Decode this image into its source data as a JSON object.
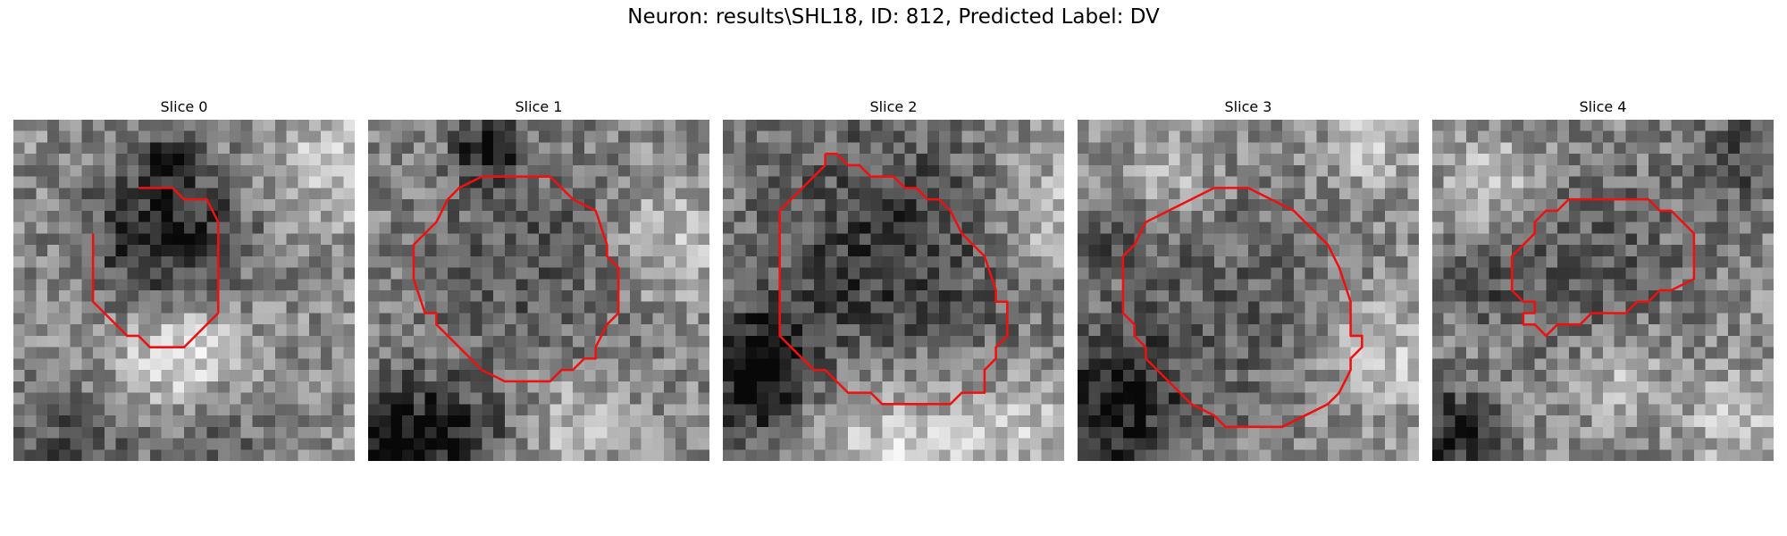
{
  "figure": {
    "title": "Neuron: results\\SHL18, ID: 812, Predicted Label: DV"
  },
  "contour_color": "#ee1111",
  "panels": [
    {
      "title": "Slice 0",
      "image": {
        "grid": 30,
        "dark_blobs": [
          [
            13,
            10,
            5,
            1.0
          ],
          [
            13,
            3,
            1.5,
            0.8
          ],
          [
            5,
            28,
            4,
            0.6
          ],
          [
            17,
            27,
            3,
            0.5
          ]
        ],
        "light_blobs": [
          [
            14,
            20,
            4,
            0.9
          ],
          [
            28,
            3,
            4,
            0.6
          ]
        ],
        "seed": 11
      },
      "contour": [
        [
          11,
          6
        ],
        [
          14,
          6
        ],
        [
          15,
          7
        ],
        [
          17,
          7
        ],
        [
          18,
          9
        ],
        [
          18,
          10
        ],
        [
          18,
          11
        ],
        [
          18,
          17
        ],
        [
          15,
          20
        ],
        [
          12,
          20
        ],
        [
          11,
          19
        ],
        [
          10,
          19
        ],
        [
          7,
          16
        ],
        [
          7,
          10
        ]
      ]
    },
    {
      "title": "Slice 1",
      "image": {
        "grid": 30,
        "dark_blobs": [
          [
            14,
            12,
            8,
            0.45
          ],
          [
            10,
            2,
            2,
            0.9
          ],
          [
            2,
            28,
            4,
            1.0
          ],
          [
            8,
            27,
            3,
            0.5
          ]
        ],
        "light_blobs": [
          [
            26,
            10,
            4,
            0.6
          ],
          [
            18,
            26,
            3,
            0.6
          ]
        ],
        "seed": 23
      },
      "contour": [
        [
          10,
          5
        ],
        [
          16,
          5
        ],
        [
          18,
          7
        ],
        [
          20,
          8
        ],
        [
          21,
          11
        ],
        [
          21,
          12
        ],
        [
          22,
          13
        ],
        [
          22,
          17
        ],
        [
          21,
          18
        ],
        [
          20,
          20
        ],
        [
          20,
          21
        ],
        [
          19,
          21
        ],
        [
          18,
          22
        ],
        [
          17,
          22
        ],
        [
          16,
          23
        ],
        [
          12,
          23
        ],
        [
          10,
          22
        ],
        [
          9,
          21
        ],
        [
          8,
          20
        ],
        [
          6,
          18
        ],
        [
          6,
          17
        ],
        [
          5,
          17
        ],
        [
          4,
          14
        ],
        [
          4,
          11
        ],
        [
          5,
          10
        ],
        [
          6,
          9
        ],
        [
          7,
          7
        ],
        [
          8,
          6
        ],
        [
          10,
          5
        ]
      ]
    },
    {
      "title": "Slice 2",
      "image": {
        "grid": 30,
        "dark_blobs": [
          [
            14,
            12,
            9,
            0.75
          ],
          [
            3,
            20,
            3,
            0.8
          ],
          [
            2,
            24,
            3,
            0.7
          ]
        ],
        "light_blobs": [
          [
            15,
            29,
            6,
            0.8
          ],
          [
            28,
            8,
            4,
            0.6
          ],
          [
            26,
            26,
            3,
            0.5
          ]
        ],
        "seed": 37
      },
      "contour": [
        [
          9,
          3
        ],
        [
          10,
          3
        ],
        [
          11,
          4
        ],
        [
          12,
          4
        ],
        [
          13,
          5
        ],
        [
          15,
          5
        ],
        [
          16,
          6
        ],
        [
          17,
          6
        ],
        [
          18,
          7
        ],
        [
          19,
          7
        ],
        [
          20,
          8
        ],
        [
          21,
          10
        ],
        [
          22,
          11
        ],
        [
          23,
          12
        ],
        [
          24,
          15
        ],
        [
          24,
          16
        ],
        [
          25,
          16
        ],
        [
          25,
          17
        ],
        [
          25,
          18
        ],
        [
          25,
          19
        ],
        [
          24,
          20
        ],
        [
          24,
          21
        ],
        [
          23,
          22
        ],
        [
          23,
          24
        ],
        [
          21,
          24
        ],
        [
          20,
          25
        ],
        [
          19,
          25
        ],
        [
          18,
          25
        ],
        [
          17,
          25
        ],
        [
          14,
          25
        ],
        [
          13,
          24
        ],
        [
          11,
          24
        ],
        [
          10,
          23
        ],
        [
          9,
          22
        ],
        [
          8,
          22
        ],
        [
          7,
          21
        ],
        [
          6,
          20
        ],
        [
          5,
          19
        ],
        [
          5,
          17
        ],
        [
          5,
          16
        ],
        [
          5,
          13
        ],
        [
          5,
          10
        ],
        [
          5,
          8
        ],
        [
          6,
          7
        ],
        [
          7,
          6
        ],
        [
          8,
          5
        ],
        [
          9,
          4
        ],
        [
          9,
          3
        ]
      ]
    },
    {
      "title": "Slice 3",
      "image": {
        "grid": 30,
        "dark_blobs": [
          [
            14,
            15,
            8,
            0.4
          ],
          [
            2,
            25,
            5,
            1.0
          ],
          [
            3,
            10,
            2,
            0.5
          ]
        ],
        "light_blobs": [
          [
            26,
            20,
            4,
            0.6
          ],
          [
            8,
            4,
            3,
            0.5
          ],
          [
            25,
            2,
            3,
            0.5
          ]
        ],
        "seed": 51
      },
      "contour": [
        [
          12,
          6
        ],
        [
          15,
          6
        ],
        [
          17,
          7
        ],
        [
          19,
          8
        ],
        [
          21,
          10
        ],
        [
          22,
          11
        ],
        [
          23,
          13
        ],
        [
          24,
          16
        ],
        [
          24,
          19
        ],
        [
          25,
          19
        ],
        [
          25,
          20
        ],
        [
          24,
          21
        ],
        [
          24,
          22
        ],
        [
          23,
          24
        ],
        [
          22,
          25
        ],
        [
          20,
          26
        ],
        [
          18,
          27
        ],
        [
          13,
          27
        ],
        [
          12,
          26
        ],
        [
          10,
          25
        ],
        [
          8,
          23
        ],
        [
          6,
          21
        ],
        [
          6,
          20
        ],
        [
          5,
          19
        ],
        [
          5,
          18
        ],
        [
          5,
          18
        ],
        [
          4,
          17
        ],
        [
          4,
          12
        ],
        [
          5,
          11
        ],
        [
          6,
          9
        ],
        [
          8,
          8
        ],
        [
          10,
          7
        ],
        [
          12,
          6
        ]
      ]
    },
    {
      "title": "Slice 4",
      "image": {
        "grid": 30,
        "dark_blobs": [
          [
            13,
            12,
            7,
            0.45
          ],
          [
            1,
            27,
            3,
            0.9
          ],
          [
            27,
            3,
            3,
            0.6
          ],
          [
            3,
            14,
            2,
            0.5
          ]
        ],
        "light_blobs": [
          [
            5,
            5,
            3,
            0.6
          ],
          [
            26,
            26,
            3,
            0.5
          ],
          [
            16,
            22,
            3,
            0.5
          ]
        ],
        "seed": 67
      },
      "contour": [
        [
          12,
          7
        ],
        [
          19,
          7
        ],
        [
          20,
          8
        ],
        [
          21,
          8
        ],
        [
          23,
          10
        ],
        [
          23,
          14
        ],
        [
          21,
          15
        ],
        [
          20,
          15
        ],
        [
          19,
          16
        ],
        [
          18,
          16
        ],
        [
          17,
          17
        ],
        [
          15,
          17
        ],
        [
          14,
          17
        ],
        [
          13,
          18
        ],
        [
          12,
          18
        ],
        [
          11,
          18
        ],
        [
          10,
          19
        ],
        [
          9,
          18
        ],
        [
          8,
          18
        ],
        [
          8,
          17
        ],
        [
          9,
          17
        ],
        [
          9,
          16
        ],
        [
          8,
          16
        ],
        [
          7,
          15
        ],
        [
          7,
          13
        ],
        [
          7,
          12
        ],
        [
          8,
          11
        ],
        [
          9,
          10
        ],
        [
          9,
          9
        ],
        [
          10,
          8
        ],
        [
          11,
          8
        ],
        [
          12,
          7
        ]
      ]
    }
  ]
}
